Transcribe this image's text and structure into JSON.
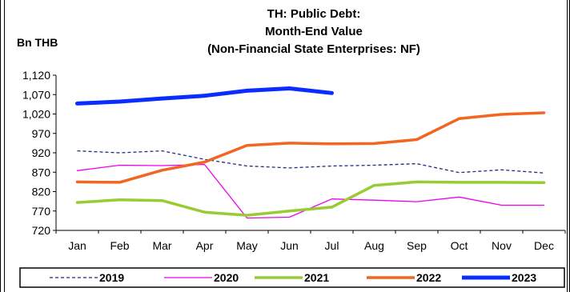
{
  "chart_data": {
    "type": "line",
    "title_lines": [
      "TH: Public Debt:",
      "Month-End Value",
      "(Non-Financial State Enterprises: NF)"
    ],
    "ylabel": "Bn THB",
    "xlabel": "",
    "categories": [
      "Jan",
      "Feb",
      "Mar",
      "Apr",
      "May",
      "Jun",
      "Jul",
      "Aug",
      "Sep",
      "Oct",
      "Nov",
      "Dec"
    ],
    "ylim": [
      720,
      1120
    ],
    "yticks": [
      "720",
      "770",
      "820",
      "870",
      "920",
      "970",
      "1,020",
      "1,070",
      "1,120"
    ],
    "yticks_values": [
      720,
      770,
      820,
      870,
      920,
      970,
      1020,
      1070,
      1120
    ],
    "grid": false,
    "legend_position": "bottom",
    "series": [
      {
        "name": "2019",
        "color": "#1f2f7a",
        "style": "dashed",
        "width": 1.3,
        "values": [
          925,
          920,
          925,
          903,
          886,
          881,
          886,
          888,
          892,
          869,
          876,
          868
        ]
      },
      {
        "name": "2020",
        "color": "#ee00ee",
        "style": "solid",
        "width": 1.3,
        "values": [
          874,
          888,
          887,
          890,
          752,
          754,
          801,
          798,
          794,
          806,
          785,
          785
        ]
      },
      {
        "name": "2021",
        "color": "#99cc33",
        "style": "solid",
        "width": 3.5,
        "values": [
          792,
          799,
          797,
          767,
          759,
          770,
          780,
          836,
          845,
          844,
          844,
          843
        ]
      },
      {
        "name": "2022",
        "color": "#f26522",
        "style": "solid",
        "width": 3.5,
        "values": [
          845,
          844,
          875,
          896,
          939,
          945,
          943,
          944,
          954,
          1008,
          1019,
          1023
        ]
      },
      {
        "name": "2023",
        "color": "#0a2dff",
        "style": "solid",
        "width": 5,
        "values": [
          1047,
          1052,
          1060,
          1067,
          1080,
          1086,
          1074,
          null,
          null,
          null,
          null,
          null
        ]
      }
    ]
  }
}
